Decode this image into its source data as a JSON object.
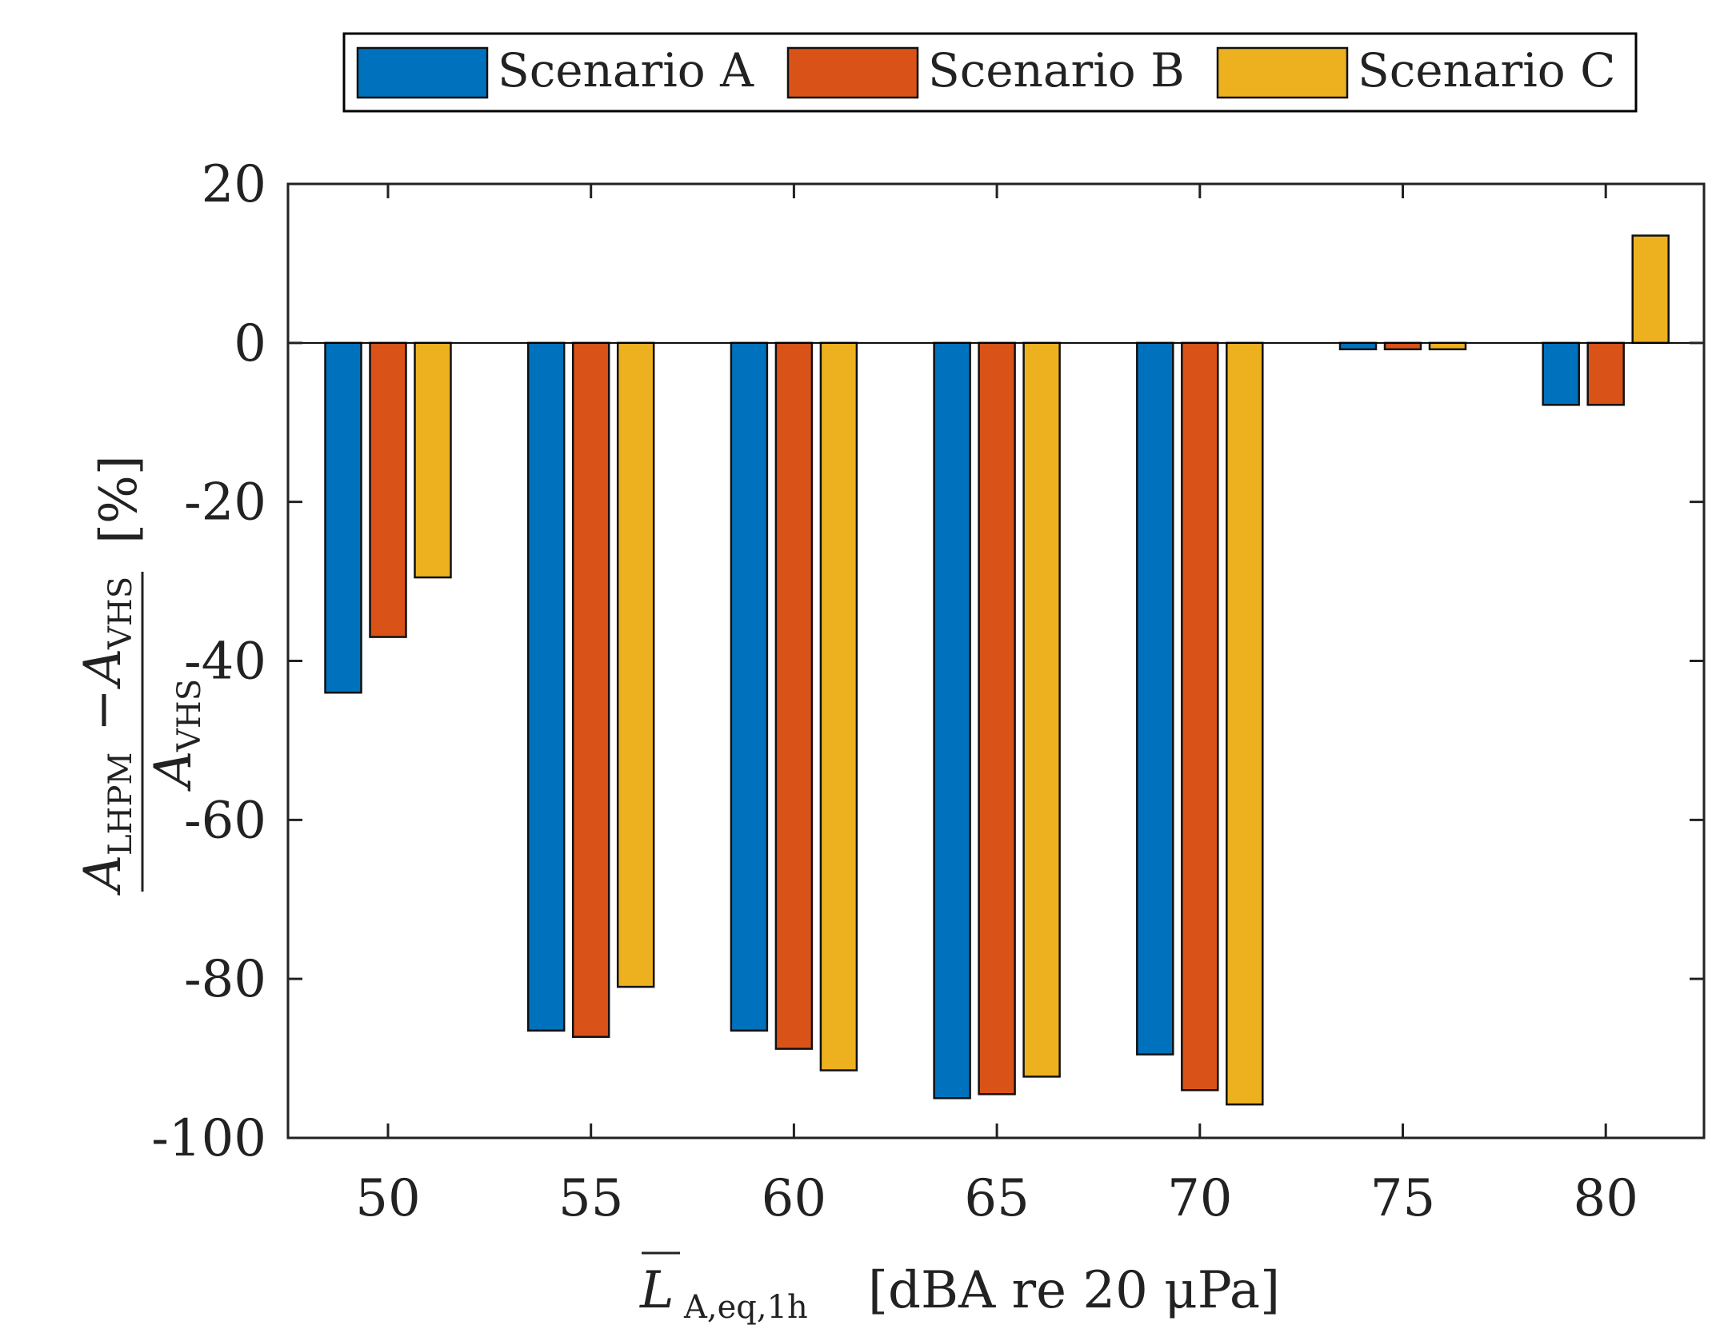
{
  "chart_data": {
    "type": "bar",
    "categories": [
      "50",
      "55",
      "60",
      "65",
      "70",
      "75",
      "80"
    ],
    "series": [
      {
        "name": "Scenario A",
        "color": "#0072BD",
        "values": [
          -44,
          -86.5,
          -86.5,
          -95,
          -89.5,
          -0.8,
          -7.8
        ]
      },
      {
        "name": "Scenario B",
        "color": "#D95319",
        "values": [
          -37,
          -87.3,
          -88.8,
          -94.5,
          -94,
          -0.8,
          -7.8
        ]
      },
      {
        "name": "Scenario C",
        "color": "#EDB120",
        "values": [
          -29.5,
          -81,
          -91.5,
          -92.3,
          -95.8,
          -0.8,
          13.5
        ]
      }
    ],
    "ylim": [
      -100,
      20
    ],
    "yticks": [
      "20",
      "0",
      "-20",
      "-40",
      "-60",
      "-80",
      "-100"
    ],
    "xlabel": {
      "main": "L",
      "sub": "A,eq,1h",
      "rest": "[dBA re 20 μPa]"
    },
    "ylabel": {
      "numerator": {
        "a1": "A",
        "s1": "LHPM",
        "mid": "−",
        "a2": "A",
        "s2": "VHS"
      },
      "denominator": {
        "a": "A",
        "s": "VHS"
      },
      "unit": "[%]"
    },
    "legend_position": "top",
    "grid": false
  }
}
